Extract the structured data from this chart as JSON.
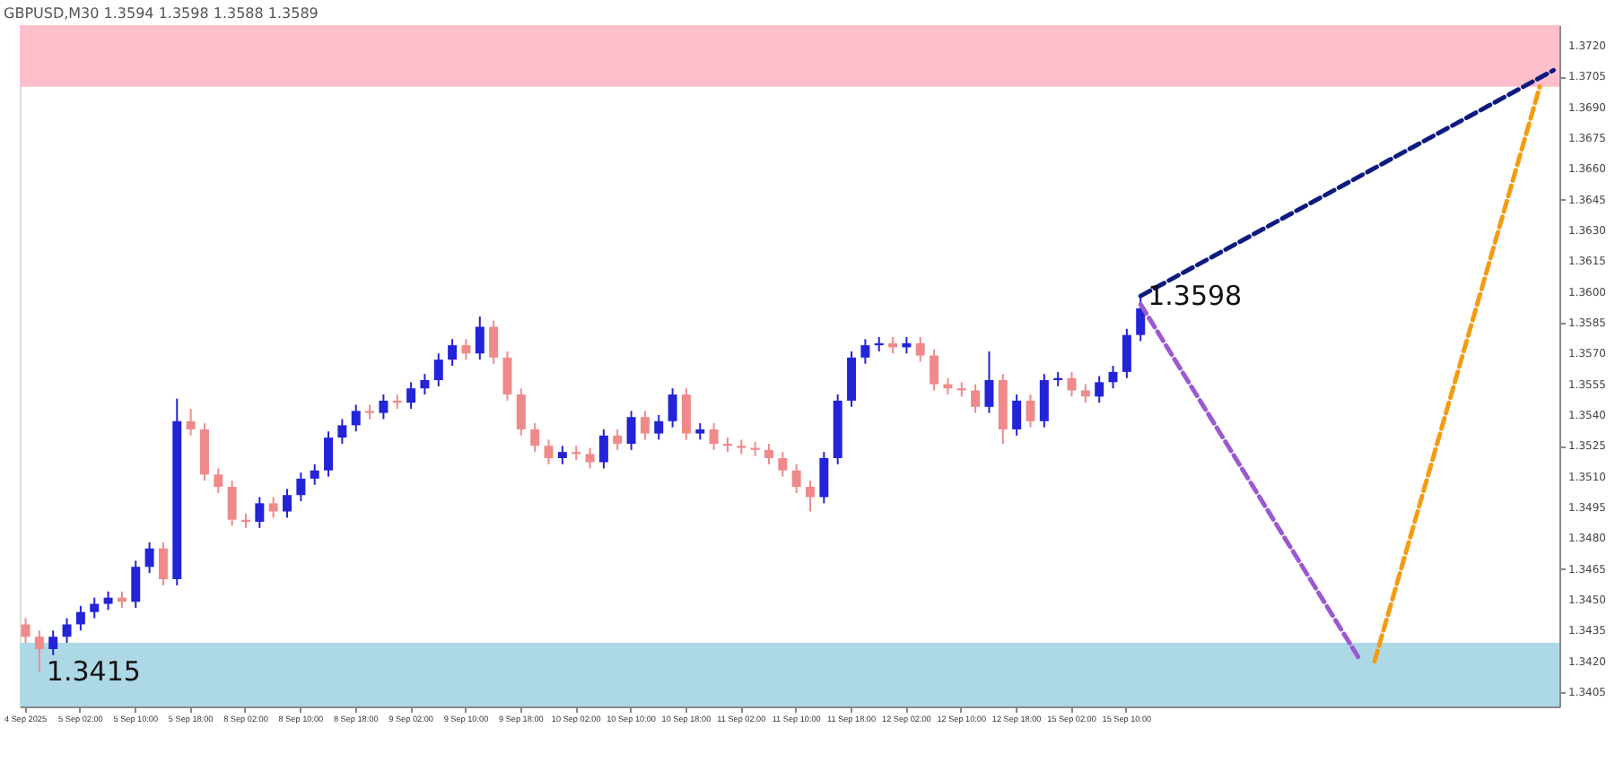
{
  "chart_data": {
    "type": "candlestick",
    "title": "GBPUSD,M30 1.3594 1.3598 1.3588 1.3589",
    "categories": [
      "4 Sep 2025",
      null,
      null,
      null,
      "5 Sep 02:00",
      null,
      null,
      null,
      "5 Sep 10:00",
      null,
      null,
      null,
      "5 Sep 18:00",
      null,
      null,
      null,
      "8 Sep 02:00",
      null,
      null,
      null,
      "8 Sep 10:00",
      null,
      null,
      null,
      "8 Sep 18:00",
      null,
      null,
      null,
      "9 Sep 02:00",
      null,
      null,
      null,
      "9 Sep 10:00",
      null,
      null,
      null,
      "9 Sep 18:00",
      null,
      null,
      null,
      "10 Sep 02:00",
      null,
      null,
      null,
      "10 Sep 10:00",
      null,
      null,
      null,
      "10 Sep 18:00",
      null,
      null,
      null,
      "11 Sep 02:00",
      null,
      null,
      null,
      "11 Sep 10:00",
      null,
      null,
      null,
      "11 Sep 18:00",
      null,
      null,
      null,
      "12 Sep 02:00",
      null,
      null,
      null,
      "12 Sep 10:00",
      null,
      null,
      null,
      "12 Sep 18:00",
      null,
      null,
      null,
      "15 Sep 02:00",
      null,
      null,
      null,
      "15 Sep 10:00",
      null,
      null,
      null,
      null,
      null,
      null,
      null,
      null,
      null,
      null,
      null,
      null,
      null,
      null,
      null,
      null,
      null,
      null,
      null,
      null,
      null,
      null,
      null,
      null,
      null,
      null,
      null,
      null,
      null,
      null,
      null
    ],
    "ohlc": [
      [
        1.3438,
        1.3441,
        1.3429,
        1.3432
      ],
      [
        1.3432,
        1.3435,
        1.3415,
        1.3426
      ],
      [
        1.3426,
        1.3435,
        1.3423,
        1.3432
      ],
      [
        1.3432,
        1.3441,
        1.3429,
        1.3438
      ],
      [
        1.3438,
        1.3447,
        1.3435,
        1.3444
      ],
      [
        1.3444,
        1.3451,
        1.3441,
        1.3448
      ],
      [
        1.3448,
        1.3454,
        1.3445,
        1.3451
      ],
      [
        1.3451,
        1.3454,
        1.3446,
        1.3449
      ],
      [
        1.3449,
        1.3469,
        1.3446,
        1.3466
      ],
      [
        1.3466,
        1.3478,
        1.3463,
        1.3475
      ],
      [
        1.3475,
        1.3478,
        1.3457,
        1.346
      ],
      [
        1.346,
        1.3548,
        1.3457,
        1.3537
      ],
      [
        1.3537,
        1.3543,
        1.353,
        1.3533
      ],
      [
        1.3533,
        1.3536,
        1.3508,
        1.3511
      ],
      [
        1.3511,
        1.3514,
        1.3502,
        1.3505
      ],
      [
        1.3505,
        1.3508,
        1.3486,
        1.3489
      ],
      [
        1.3489,
        1.3492,
        1.3485,
        1.3488
      ],
      [
        1.3488,
        1.35,
        1.3485,
        1.3497
      ],
      [
        1.3497,
        1.35,
        1.349,
        1.3493
      ],
      [
        1.3493,
        1.3504,
        1.349,
        1.3501
      ],
      [
        1.3501,
        1.3512,
        1.3498,
        1.3509
      ],
      [
        1.3509,
        1.3516,
        1.3506,
        1.3513
      ],
      [
        1.3513,
        1.3532,
        1.351,
        1.3529
      ],
      [
        1.3529,
        1.3538,
        1.3526,
        1.3535
      ],
      [
        1.3535,
        1.3545,
        1.3532,
        1.3542
      ],
      [
        1.3542,
        1.3545,
        1.3538,
        1.3541
      ],
      [
        1.3541,
        1.355,
        1.3538,
        1.3547
      ],
      [
        1.3547,
        1.355,
        1.3543,
        1.3546
      ],
      [
        1.3546,
        1.3556,
        1.3543,
        1.3553
      ],
      [
        1.3553,
        1.356,
        1.355,
        1.3557
      ],
      [
        1.3557,
        1.357,
        1.3554,
        1.3567
      ],
      [
        1.3567,
        1.3577,
        1.3564,
        1.3574
      ],
      [
        1.3574,
        1.3577,
        1.3567,
        1.357
      ],
      [
        1.357,
        1.3588,
        1.3567,
        1.3583
      ],
      [
        1.3583,
        1.3586,
        1.3565,
        1.3568
      ],
      [
        1.3568,
        1.3571,
        1.3547,
        1.355
      ],
      [
        1.355,
        1.3553,
        1.353,
        1.3533
      ],
      [
        1.3533,
        1.3536,
        1.3522,
        1.3525
      ],
      [
        1.3525,
        1.3528,
        1.3516,
        1.3519
      ],
      [
        1.3519,
        1.3525,
        1.3516,
        1.3522
      ],
      [
        1.3522,
        1.3525,
        1.3518,
        1.3521
      ],
      [
        1.3521,
        1.3524,
        1.3514,
        1.3517
      ],
      [
        1.3517,
        1.3533,
        1.3514,
        1.353
      ],
      [
        1.353,
        1.3533,
        1.3523,
        1.3526
      ],
      [
        1.3526,
        1.3542,
        1.3523,
        1.3539
      ],
      [
        1.3539,
        1.3542,
        1.3528,
        1.3531
      ],
      [
        1.3531,
        1.354,
        1.3528,
        1.3537
      ],
      [
        1.3537,
        1.3553,
        1.3534,
        1.355
      ],
      [
        1.355,
        1.3553,
        1.3528,
        1.3531
      ],
      [
        1.3531,
        1.3536,
        1.3528,
        1.3533
      ],
      [
        1.3533,
        1.3536,
        1.3523,
        1.3526
      ],
      [
        1.3526,
        1.3529,
        1.3522,
        1.3525
      ],
      [
        1.3525,
        1.3528,
        1.3521,
        1.3524
      ],
      [
        1.3524,
        1.3527,
        1.352,
        1.3523
      ],
      [
        1.3523,
        1.3526,
        1.3516,
        1.3519
      ],
      [
        1.3519,
        1.3522,
        1.351,
        1.3513
      ],
      [
        1.3513,
        1.3516,
        1.3502,
        1.3505
      ],
      [
        1.3505,
        1.3508,
        1.3493,
        1.35
      ],
      [
        1.35,
        1.3522,
        1.3497,
        1.3519
      ],
      [
        1.3519,
        1.355,
        1.3516,
        1.3547
      ],
      [
        1.3547,
        1.3571,
        1.3544,
        1.3568
      ],
      [
        1.3568,
        1.3577,
        1.3565,
        1.3574
      ],
      [
        1.3574,
        1.3578,
        1.3571,
        1.3575
      ],
      [
        1.3575,
        1.3578,
        1.357,
        1.3573
      ],
      [
        1.3573,
        1.3578,
        1.357,
        1.3575
      ],
      [
        1.3575,
        1.3578,
        1.3566,
        1.3569
      ],
      [
        1.3569,
        1.3572,
        1.3552,
        1.3555
      ],
      [
        1.3555,
        1.3558,
        1.355,
        1.3553
      ],
      [
        1.3553,
        1.3556,
        1.3549,
        1.3552
      ],
      [
        1.3552,
        1.3555,
        1.3541,
        1.3544
      ],
      [
        1.3544,
        1.3571,
        1.3541,
        1.3557
      ],
      [
        1.3557,
        1.356,
        1.3526,
        1.3533
      ],
      [
        1.3533,
        1.355,
        1.353,
        1.3547
      ],
      [
        1.3547,
        1.355,
        1.3534,
        1.3537
      ],
      [
        1.3537,
        1.356,
        1.3534,
        1.3557
      ],
      [
        1.3557,
        1.3561,
        1.3554,
        1.3558
      ],
      [
        1.3558,
        1.3561,
        1.3549,
        1.3552
      ],
      [
        1.3552,
        1.3555,
        1.3546,
        1.3549
      ],
      [
        1.3549,
        1.3559,
        1.3546,
        1.3556
      ],
      [
        1.3556,
        1.3564,
        1.3553,
        1.3561
      ],
      [
        1.3561,
        1.3582,
        1.3558,
        1.3579
      ],
      [
        1.3579,
        1.3598,
        1.3576,
        1.3592
      ],
      null,
      null,
      null,
      null,
      null,
      null,
      null,
      null,
      null,
      null,
      null,
      null,
      null,
      null,
      null,
      null,
      null,
      null,
      null,
      null,
      null,
      null,
      null,
      null,
      null,
      null,
      null,
      null,
      null,
      null
    ],
    "series": [
      {
        "type": "line",
        "color": "#0d1a80",
        "line_style": "dashed",
        "values": [
          null,
          null,
          null,
          null,
          null,
          null,
          null,
          null,
          null,
          null,
          null,
          null,
          null,
          null,
          null,
          null,
          null,
          null,
          null,
          null,
          null,
          null,
          null,
          null,
          null,
          null,
          null,
          null,
          null,
          null,
          null,
          null,
          null,
          null,
          null,
          null,
          null,
          null,
          null,
          null,
          null,
          null,
          null,
          null,
          null,
          null,
          null,
          null,
          null,
          null,
          null,
          null,
          null,
          null,
          null,
          null,
          null,
          null,
          null,
          null,
          null,
          null,
          null,
          null,
          null,
          null,
          null,
          null,
          null,
          null,
          null,
          null,
          null,
          null,
          null,
          null,
          null,
          null,
          null,
          null,
          null,
          1.3598,
          null,
          null,
          null,
          null,
          null,
          null,
          null,
          null,
          null,
          null,
          null,
          null,
          null,
          null,
          null,
          null,
          null,
          null,
          null,
          null,
          null,
          null,
          null,
          null,
          null,
          null,
          null,
          null,
          null,
          1.3708
        ]
      },
      {
        "type": "line",
        "color": "#9b59d0",
        "line_style": "dashed",
        "values": [
          null,
          null,
          null,
          null,
          null,
          null,
          null,
          null,
          null,
          null,
          null,
          null,
          null,
          null,
          null,
          null,
          null,
          null,
          null,
          null,
          null,
          null,
          null,
          null,
          null,
          null,
          null,
          null,
          null,
          null,
          null,
          null,
          null,
          null,
          null,
          null,
          null,
          null,
          null,
          null,
          null,
          null,
          null,
          null,
          null,
          null,
          null,
          null,
          null,
          null,
          null,
          null,
          null,
          null,
          null,
          null,
          null,
          null,
          null,
          null,
          null,
          null,
          null,
          null,
          null,
          null,
          null,
          null,
          null,
          null,
          null,
          null,
          null,
          null,
          null,
          null,
          null,
          null,
          null,
          null,
          null,
          1.3594,
          null,
          null,
          null,
          null,
          null,
          null,
          null,
          null,
          null,
          null,
          null,
          null,
          null,
          null,
          null,
          1.342,
          null,
          null,
          null,
          null,
          null,
          null,
          null,
          null,
          null,
          null,
          null,
          null,
          null,
          null
        ]
      },
      {
        "type": "line",
        "color": "#f39c12",
        "line_style": "dashed",
        "values": [
          null,
          null,
          null,
          null,
          null,
          null,
          null,
          null,
          null,
          null,
          null,
          null,
          null,
          null,
          null,
          null,
          null,
          null,
          null,
          null,
          null,
          null,
          null,
          null,
          null,
          null,
          null,
          null,
          null,
          null,
          null,
          null,
          null,
          null,
          null,
          null,
          null,
          null,
          null,
          null,
          null,
          null,
          null,
          null,
          null,
          null,
          null,
          null,
          null,
          null,
          null,
          null,
          null,
          null,
          null,
          null,
          null,
          null,
          null,
          null,
          null,
          null,
          null,
          null,
          null,
          null,
          null,
          null,
          null,
          null,
          null,
          null,
          null,
          null,
          null,
          null,
          null,
          null,
          null,
          null,
          null,
          null,
          null,
          null,
          null,
          null,
          null,
          null,
          null,
          null,
          null,
          null,
          null,
          null,
          null,
          null,
          null,
          null,
          1.342,
          null,
          null,
          null,
          null,
          null,
          null,
          null,
          null,
          null,
          null,
          null,
          1.37,
          null
        ]
      }
    ],
    "bands": [
      {
        "axis": "y",
        "from": 1.37,
        "to": 1.373,
        "color": "#ffc0cb"
      },
      {
        "axis": "y",
        "from": 1.3398,
        "to": 1.3429,
        "color": "#add8e6"
      }
    ],
    "annotations": [
      "1.3598",
      "1.3415"
    ],
    "ylim": [
      1.3398,
      1.373
    ],
    "yticks": [
      1.3405,
      {
        "value": 1.342,
        "label": "1.3420"
      },
      1.3435,
      {
        "value": 1.345,
        "label": "1.3450"
      },
      1.3465,
      {
        "value": 1.348,
        "label": "1.3480"
      },
      1.3495,
      {
        "value": 1.351,
        "label": "1.3510"
      },
      1.3525,
      {
        "value": 1.354,
        "label": "1.3540"
      },
      1.3555,
      {
        "value": 1.357,
        "label": "1.3570"
      },
      1.3585,
      {
        "value": 1.36,
        "label": "1.3600"
      },
      1.3615,
      {
        "value": 1.363,
        "label": "1.3630"
      },
      1.3645,
      {
        "value": 1.366,
        "label": "1.3660"
      },
      1.3675,
      {
        "value": 1.369,
        "label": "1.3690"
      },
      1.3705,
      {
        "value": 1.372,
        "label": "1.3720"
      }
    ],
    "grid": false
  }
}
